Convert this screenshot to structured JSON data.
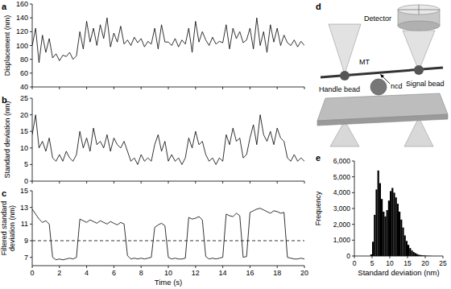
{
  "chart_data": [
    {
      "type": "line",
      "panel": "a",
      "ylabel": "Displacement (nm)",
      "color": "#000000",
      "tick_labels": "y",
      "x": [
        0,
        0.25,
        0.5,
        0.75,
        1,
        1.25,
        1.5,
        1.75,
        2,
        2.25,
        2.5,
        2.75,
        3,
        3.25,
        3.5,
        3.75,
        4,
        4.25,
        4.5,
        4.75,
        5,
        5.25,
        5.5,
        5.75,
        6,
        6.25,
        6.5,
        6.75,
        7,
        7.25,
        7.5,
        7.75,
        8,
        8.25,
        8.5,
        8.75,
        9,
        9.25,
        9.5,
        9.75,
        10,
        10.25,
        10.5,
        10.75,
        11,
        11.25,
        11.5,
        11.75,
        12,
        12.25,
        12.5,
        12.75,
        13,
        13.25,
        13.5,
        13.75,
        14,
        14.25,
        14.5,
        14.75,
        15,
        15.25,
        15.5,
        15.75,
        16,
        16.25,
        16.5,
        16.75,
        17,
        17.25,
        17.5,
        17.75,
        18,
        18.25,
        18.5,
        18.75,
        19,
        19.25,
        19.5,
        19.75,
        20
      ],
      "values": [
        100,
        125,
        75,
        115,
        90,
        110,
        82,
        88,
        78,
        86,
        84,
        90,
        80,
        85,
        120,
        95,
        135,
        105,
        125,
        100,
        130,
        110,
        140,
        98,
        118,
        105,
        128,
        102,
        108,
        100,
        112,
        104,
        110,
        98,
        106,
        102,
        125,
        95,
        130,
        105,
        105,
        100,
        110,
        98,
        108,
        102,
        125,
        90,
        135,
        105,
        120,
        108,
        100,
        112,
        102,
        106,
        104,
        130,
        95,
        125,
        110,
        120,
        104,
        108,
        125,
        95,
        140,
        100,
        120,
        90,
        130,
        105,
        125,
        100,
        115,
        104,
        100,
        108,
        98,
        106,
        100
      ],
      "xlim": [
        0,
        20
      ],
      "xticks": [
        0,
        2,
        4,
        6,
        8,
        10,
        12,
        14,
        16,
        18,
        20
      ],
      "ylim": [
        40,
        160
      ],
      "yticks": [
        40,
        60,
        80,
        100,
        120,
        140,
        160
      ]
    },
    {
      "type": "line",
      "panel": "b",
      "ylabel": "Standard deviation (nm)",
      "color": "#000000",
      "tick_labels": "y",
      "x": [
        0,
        0.25,
        0.5,
        0.75,
        1,
        1.25,
        1.5,
        1.75,
        2,
        2.25,
        2.5,
        2.75,
        3,
        3.25,
        3.5,
        3.75,
        4,
        4.25,
        4.5,
        4.75,
        5,
        5.25,
        5.5,
        5.75,
        6,
        6.25,
        6.5,
        6.75,
        7,
        7.25,
        7.5,
        7.75,
        8,
        8.25,
        8.5,
        8.75,
        9,
        9.25,
        9.5,
        9.75,
        10,
        10.25,
        10.5,
        10.75,
        11,
        11.25,
        11.5,
        11.75,
        12,
        12.25,
        12.5,
        12.75,
        13,
        13.25,
        13.5,
        13.75,
        14,
        14.25,
        14.5,
        14.75,
        15,
        15.25,
        15.5,
        15.75,
        16,
        16.25,
        16.5,
        16.75,
        17,
        17.25,
        17.5,
        17.75,
        18,
        18.25,
        18.5,
        18.75,
        19,
        19.25,
        19.5,
        19.75,
        20
      ],
      "values": [
        14,
        20,
        10,
        12,
        9,
        13,
        7,
        6,
        8,
        6,
        9,
        7,
        6,
        8,
        15,
        10,
        13,
        9,
        16,
        11,
        12,
        10,
        14,
        9,
        13,
        11,
        10,
        12,
        9,
        6,
        7,
        5,
        8,
        6,
        7,
        6,
        11,
        14,
        9,
        12,
        6,
        8,
        6,
        7,
        5,
        7,
        13,
        10,
        15,
        11,
        12,
        8,
        6,
        7,
        5,
        7,
        6,
        14,
        11,
        16,
        12,
        13,
        7,
        8,
        13,
        17,
        11,
        20,
        14,
        12,
        15,
        11,
        16,
        13,
        12,
        7,
        6,
        8,
        6,
        7,
        6
      ],
      "xlim": [
        0,
        20
      ],
      "xticks": [
        0,
        2,
        4,
        6,
        8,
        10,
        12,
        14,
        16,
        18,
        20
      ],
      "ylim": [
        0,
        25
      ],
      "yticks": [
        0,
        5,
        10,
        15,
        20,
        25
      ]
    },
    {
      "type": "line",
      "panel": "c",
      "ylabel": [
        "Filtered standard",
        "deviation (nm)"
      ],
      "xlabel": "Time (s)",
      "color": "#000000",
      "threshold": 9,
      "x": [
        0,
        0.25,
        0.5,
        0.75,
        1,
        1.25,
        1.5,
        1.75,
        2,
        2.25,
        2.5,
        2.75,
        3,
        3.25,
        3.5,
        3.75,
        4,
        4.25,
        4.5,
        4.75,
        5,
        5.25,
        5.5,
        5.75,
        6,
        6.25,
        6.5,
        6.75,
        7,
        7.25,
        7.5,
        7.75,
        8,
        8.25,
        8.5,
        8.75,
        9,
        9.25,
        9.5,
        9.75,
        10,
        10.25,
        10.5,
        10.75,
        11,
        11.25,
        11.5,
        11.75,
        12,
        12.25,
        12.5,
        12.75,
        13,
        13.25,
        13.5,
        13.75,
        14,
        14.25,
        14.5,
        14.75,
        15,
        15.25,
        15.5,
        15.75,
        16,
        16.25,
        16.5,
        16.75,
        17,
        17.25,
        17.5,
        17.75,
        18,
        18.25,
        18.5,
        18.75,
        19,
        19.25,
        19.5,
        19.75,
        20
      ],
      "values": [
        12.8,
        12.2,
        11.6,
        11.2,
        11.4,
        11.0,
        7.0,
        6.7,
        6.8,
        6.7,
        6.8,
        6.9,
        6.8,
        7.0,
        11.6,
        11.4,
        11.2,
        11.5,
        11.3,
        11.1,
        11.4,
        11.2,
        11.0,
        11.3,
        11.1,
        10.9,
        11.2,
        11.0,
        7.2,
        6.8,
        6.9,
        6.8,
        6.9,
        6.8,
        6.9,
        7.0,
        10.6,
        10.9,
        11.1,
        10.8,
        7.0,
        6.8,
        6.9,
        6.8,
        6.8,
        6.9,
        11.8,
        11.6,
        11.7,
        11.9,
        11.5,
        7.1,
        6.8,
        6.9,
        6.8,
        6.9,
        7.0,
        12.2,
        12.0,
        11.9,
        12.3,
        12.0,
        7.0,
        7.1,
        12.4,
        12.6,
        12.8,
        12.9,
        12.7,
        12.5,
        12.3,
        12.6,
        12.5,
        12.3,
        12.4,
        7.0,
        6.9,
        6.8,
        6.8,
        6.9,
        6.8
      ],
      "xlim": [
        0,
        20
      ],
      "xticks": [
        0,
        2,
        4,
        6,
        8,
        10,
        12,
        14,
        16,
        18,
        20
      ],
      "ylim": [
        6,
        15
      ],
      "yticks": [
        7,
        9,
        11,
        13,
        15
      ]
    },
    {
      "type": "histogram",
      "panel": "e",
      "xlabel": "Standard deviation (nm)",
      "ylabel": "Frequency",
      "color": "#000000",
      "bins": [
        4.5,
        5,
        5.5,
        6,
        6.5,
        7,
        7.5,
        8,
        8.5,
        9,
        9.5,
        10,
        10.5,
        11,
        11.5,
        12,
        12.5,
        13,
        13.5,
        14,
        14.5,
        15,
        15.5,
        16,
        16.5,
        17,
        17.5,
        18,
        18.5,
        19,
        19.5,
        20,
        20.5,
        21,
        21.5,
        22
      ],
      "values": [
        100,
        900,
        2600,
        4200,
        5400,
        4600,
        3600,
        2800,
        2500,
        2900,
        3500,
        4100,
        4300,
        4000,
        3700,
        3300,
        2800,
        2300,
        1800,
        1300,
        950,
        700,
        500,
        350,
        250,
        180,
        120,
        80,
        60,
        40,
        30,
        20,
        15,
        10,
        5
      ],
      "xlim": [
        0,
        25
      ],
      "xticks": [
        0,
        5,
        10,
        15,
        20,
        25
      ],
      "ylim": [
        0,
        6000
      ],
      "yticks": [
        0,
        {
          "value": 1000,
          "label": "1,000"
        },
        {
          "value": 2000,
          "label": "2,000"
        },
        {
          "value": 3000,
          "label": "3,000"
        },
        {
          "value": 4000,
          "label": "4,000"
        },
        {
          "value": 5000,
          "label": "5,000"
        },
        {
          "value": 6000,
          "label": "6,000"
        }
      ]
    }
  ],
  "diagram": {
    "panel": "d",
    "detector": "Detector",
    "mt": "MT",
    "handle_bead": "Handle bead",
    "signal_bead": "Signal bead",
    "ncd": "ncd"
  }
}
